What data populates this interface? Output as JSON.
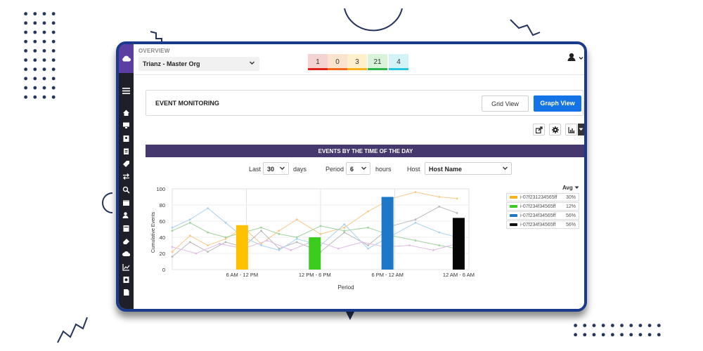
{
  "topbar": {
    "section_label": "OVERVIEW",
    "org_selector": "Trianz - Master Org",
    "severity_counts": [
      {
        "value": "1",
        "bg": "#f6d3d3",
        "color": "#e0231c"
      },
      {
        "value": "0",
        "bg": "#fbe3d0",
        "color": "#f46a1c"
      },
      {
        "value": "3",
        "bg": "#fdf0cc",
        "color": "#f8b21c"
      },
      {
        "value": "21",
        "bg": "#d9f3d9",
        "color": "#2cb54a"
      },
      {
        "value": "4",
        "bg": "#d2f4f6",
        "color": "#23c6dc"
      }
    ]
  },
  "panel": {
    "title": "EVENT MONITORING",
    "grid_view_label": "Grid View",
    "graph_view_label": "Graph View"
  },
  "toolbar_icons": [
    "share-icon",
    "gear-icon",
    "chart-icon",
    "caret-down-icon"
  ],
  "chart_header": "EVENTS BY THE TIME OF THE DAY",
  "controls": {
    "last_label": "Last",
    "last_value": "30",
    "days_label": "days",
    "period_label": "Period",
    "period_value": "6",
    "hours_label": "hours",
    "host_label": "Host",
    "host_value": "Host Name"
  },
  "legend": {
    "avg_label": "Avg",
    "items": [
      {
        "name": "i-07f231234565ff",
        "pct": "30%",
        "color": "#f8b21c"
      },
      {
        "name": "i-07f234f34565ff",
        "pct": "12%",
        "color": "#3ccc1e"
      },
      {
        "name": "i-07f234f34565ff",
        "pct": "56%",
        "color": "#1f77c8"
      },
      {
        "name": "i-07f234f34565ff",
        "pct": "56%",
        "color": "#111111"
      }
    ]
  },
  "chart_data": {
    "type": "bar",
    "xlabel": "Period",
    "ylabel": "Cumulative Events",
    "ylim": [
      0,
      100
    ],
    "yticks": [
      "100",
      "80",
      "60",
      "40",
      "20",
      "0"
    ],
    "categories": [
      "6 AM - 12 PM",
      "12 PM - 6 PM",
      "6 PM - 12 AM",
      "12 AM - 6 AM"
    ],
    "values": [
      55,
      40,
      90,
      64
    ],
    "bar_colors": [
      "#ffc000",
      "#3ccc1e",
      "#1f77c8",
      "#050505"
    ],
    "background_lines": [
      {
        "color": "#f6c98a",
        "points": [
          [
            0.0,
            22
          ],
          [
            0.06,
            42
          ],
          [
            0.12,
            30
          ],
          [
            0.18,
            38
          ],
          [
            0.24,
            52
          ],
          [
            0.3,
            32
          ],
          [
            0.36,
            48
          ],
          [
            0.42,
            62
          ],
          [
            0.5,
            44
          ],
          [
            0.58,
            52
          ],
          [
            0.66,
            72
          ],
          [
            0.74,
            88
          ],
          [
            0.82,
            96
          ],
          [
            0.9,
            90
          ],
          [
            0.96,
            88
          ]
        ]
      },
      {
        "color": "#b9b9b9",
        "points": [
          [
            0.0,
            16
          ],
          [
            0.06,
            34
          ],
          [
            0.12,
            22
          ],
          [
            0.18,
            34
          ],
          [
            0.24,
            28
          ],
          [
            0.3,
            48
          ],
          [
            0.36,
            26
          ],
          [
            0.42,
            34
          ],
          [
            0.5,
            22
          ],
          [
            0.58,
            46
          ],
          [
            0.66,
            30
          ],
          [
            0.74,
            54
          ],
          [
            0.82,
            62
          ],
          [
            0.9,
            78
          ],
          [
            0.96,
            70
          ]
        ]
      },
      {
        "color": "#9ed39b",
        "points": [
          [
            0.0,
            48
          ],
          [
            0.06,
            58
          ],
          [
            0.12,
            46
          ],
          [
            0.18,
            40
          ],
          [
            0.24,
            46
          ],
          [
            0.3,
            52
          ],
          [
            0.36,
            44
          ],
          [
            0.42,
            40
          ],
          [
            0.5,
            54
          ],
          [
            0.58,
            48
          ],
          [
            0.66,
            52
          ],
          [
            0.74,
            42
          ],
          [
            0.82,
            36
          ],
          [
            0.9,
            30
          ],
          [
            0.96,
            26
          ]
        ]
      },
      {
        "color": "#a9d3f0",
        "points": [
          [
            0.0,
            52
          ],
          [
            0.06,
            62
          ],
          [
            0.12,
            76
          ],
          [
            0.18,
            58
          ],
          [
            0.24,
            40
          ],
          [
            0.3,
            30
          ],
          [
            0.36,
            24
          ],
          [
            0.42,
            38
          ],
          [
            0.5,
            30
          ],
          [
            0.58,
            56
          ],
          [
            0.66,
            26
          ],
          [
            0.74,
            42
          ],
          [
            0.82,
            58
          ],
          [
            0.9,
            46
          ],
          [
            0.96,
            40
          ]
        ]
      },
      {
        "color": "#e3bce8",
        "points": [
          [
            0.0,
            28
          ],
          [
            0.08,
            20
          ],
          [
            0.16,
            32
          ],
          [
            0.24,
            26
          ],
          [
            0.32,
            36
          ],
          [
            0.4,
            24
          ],
          [
            0.48,
            36
          ],
          [
            0.56,
            26
          ],
          [
            0.64,
            34
          ],
          [
            0.72,
            28
          ],
          [
            0.8,
            30
          ],
          [
            0.88,
            24
          ],
          [
            0.96,
            32
          ]
        ]
      }
    ]
  }
}
